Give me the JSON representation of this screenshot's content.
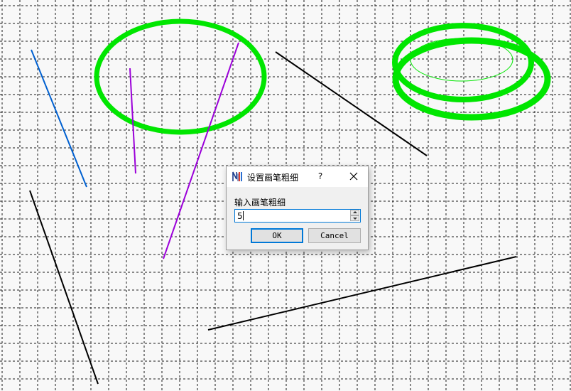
{
  "dialog": {
    "title": "设置画笔粗细",
    "help_label": "?",
    "prompt": "输入画笔粗细",
    "pen_width_value": "5",
    "ok_label": "OK",
    "cancel_label": "Cancel",
    "accent_color": "#0078d7"
  },
  "drawing": {
    "background_color": "#f8f8f8",
    "grid_color": "#1a1a1a",
    "colors": {
      "blue": "#0060d0",
      "purple": "#9b00d9",
      "black": "#000000",
      "green": "#00e600"
    }
  }
}
